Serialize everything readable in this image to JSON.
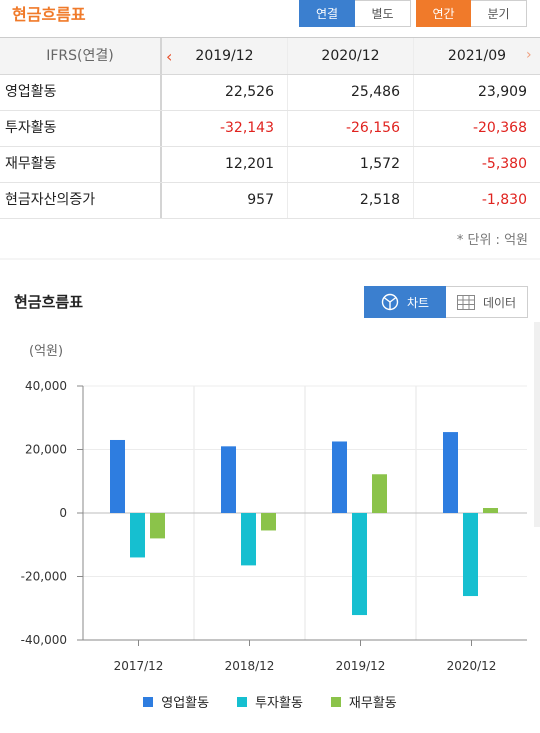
{
  "header": {
    "title": "현금흐름표",
    "consolidation_tabs": [
      "연결",
      "별도"
    ],
    "period_tabs": [
      "연간",
      "분기"
    ]
  },
  "table": {
    "corner_label": "IFRS(연결)",
    "columns": [
      "2019/12",
      "2020/12",
      "2021/09"
    ],
    "rows": [
      {
        "label": "영업활동",
        "values": [
          "22,526",
          "25,486",
          "23,909"
        ]
      },
      {
        "label": "투자활동",
        "values": [
          "-32,143",
          "-26,156",
          "-20,368"
        ]
      },
      {
        "label": "재무활동",
        "values": [
          "12,201",
          "1,572",
          "-5,380"
        ]
      },
      {
        "label": "현금자산의증가",
        "values": [
          "957",
          "2,518",
          "-1,830"
        ]
      }
    ],
    "unit_note": "* 단위 : 억원"
  },
  "chart_section": {
    "title": "현금흐름표",
    "toggle_chart": "차트",
    "toggle_data": "데이터",
    "unit_label": "(억원)"
  },
  "colors": {
    "accent_orange": "#f07a2a",
    "accent_blue": "#3b7fcf",
    "negative_red": "#e0231f",
    "series_operating": "#2e7de0",
    "series_investing": "#16bfd0",
    "series_financing": "#8bc34a"
  },
  "chart_data": {
    "type": "bar",
    "categories": [
      "2017/12",
      "2018/12",
      "2019/12",
      "2020/12"
    ],
    "series": [
      {
        "name": "영업활동",
        "values": [
          23000,
          21000,
          22526,
          25486
        ]
      },
      {
        "name": "투자활동",
        "values": [
          -14000,
          -16500,
          -32143,
          -26156
        ]
      },
      {
        "name": "재무활동",
        "values": [
          -8000,
          -5500,
          12201,
          1572
        ]
      }
    ],
    "ylim": [
      -40000,
      40000
    ],
    "yticks": [
      -40000,
      -20000,
      0,
      20000,
      40000
    ],
    "ytick_labels": [
      "-40,000",
      "-20,000",
      "0",
      "20,000",
      "40,000"
    ],
    "ylabel": "(억원)",
    "grid": true,
    "legend": "bottom"
  }
}
